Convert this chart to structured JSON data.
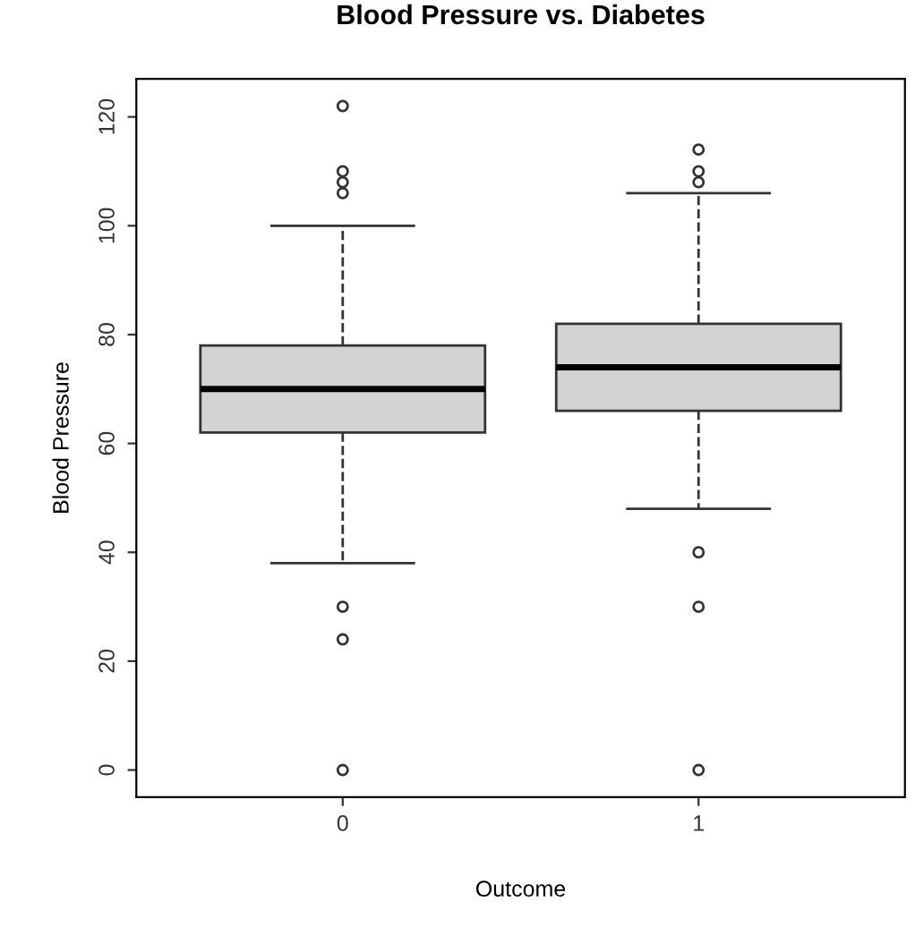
{
  "chart_data": {
    "type": "box",
    "title": "Blood Pressure vs. Diabetes",
    "xlabel": "Outcome",
    "ylabel": "Blood Pressure",
    "categories": [
      "0",
      "1"
    ],
    "boxes": [
      {
        "low": 38,
        "q1": 62,
        "median": 70,
        "q3": 78,
        "high": 100,
        "outliers": [
          0,
          24,
          30,
          106,
          108,
          110,
          122
        ]
      },
      {
        "low": 48,
        "q1": 66,
        "median": 74,
        "q3": 82,
        "high": 106,
        "outliers": [
          0,
          30,
          40,
          108,
          110,
          114
        ]
      }
    ],
    "color": "#d3d3d3",
    "ylim": [
      -5,
      127
    ],
    "yticks": [
      0,
      20,
      40,
      60,
      80,
      100,
      120
    ],
    "grid": false
  }
}
